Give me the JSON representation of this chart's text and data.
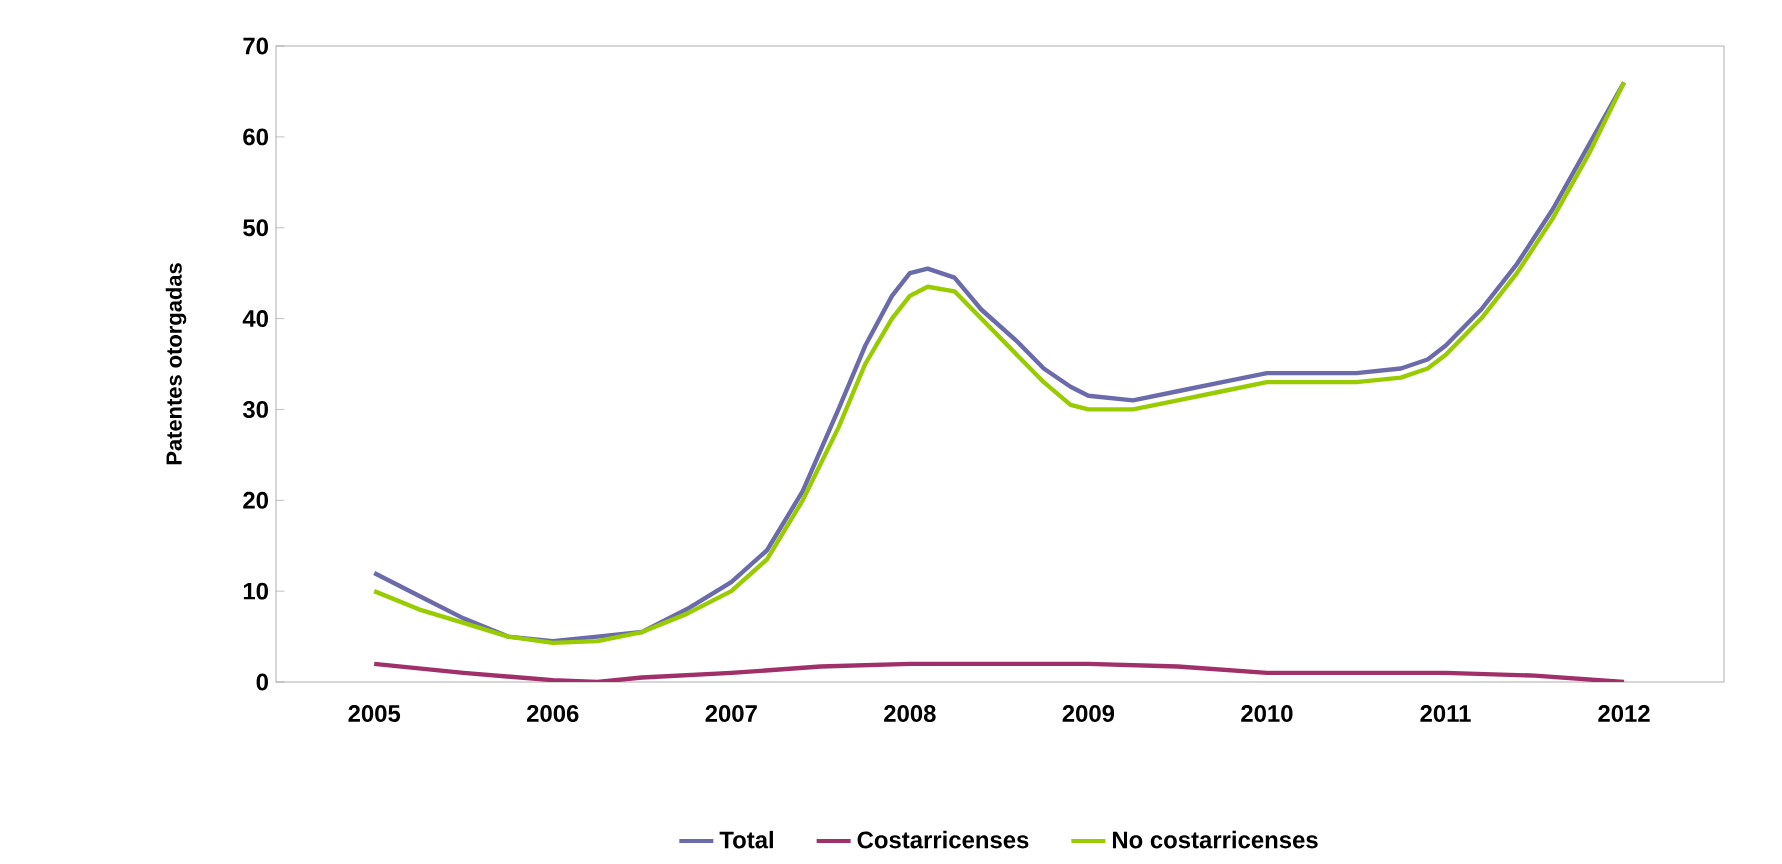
{
  "chart_data": {
    "type": "line",
    "ylabel": "Patentes otorgadas",
    "xlim": [
      2004.45,
      2012.56
    ],
    "ylim": [
      0,
      70
    ],
    "xticks": [
      2005,
      2006,
      2007,
      2008,
      2009,
      2010,
      2011,
      2012
    ],
    "yticks": [
      0,
      10,
      20,
      30,
      40,
      50,
      60,
      70
    ],
    "grid": false,
    "legend": "bottom",
    "marker": "none",
    "line_style": "solid",
    "series": [
      {
        "name": "Total",
        "color": "#6b6bab",
        "x": [
          2005,
          2005.25,
          2005.5,
          2005.75,
          2006,
          2006.25,
          2006.5,
          2006.75,
          2007,
          2007.2,
          2007.4,
          2007.6,
          2007.75,
          2007.9,
          2008,
          2008.1,
          2008.25,
          2008.4,
          2008.6,
          2008.75,
          2008.9,
          2009,
          2009.25,
          2009.5,
          2009.75,
          2010,
          2010.25,
          2010.5,
          2010.75,
          2010.9,
          2011,
          2011.2,
          2011.4,
          2011.6,
          2011.8,
          2012
        ],
        "values": [
          12,
          9.5,
          7,
          5,
          4.5,
          5,
          5.5,
          8,
          11,
          14.5,
          21,
          30,
          37,
          42.5,
          45,
          45.5,
          44.5,
          41,
          37.5,
          34.5,
          32.5,
          31.5,
          31,
          32,
          33,
          34,
          34,
          34,
          34.5,
          35.5,
          37,
          41,
          46,
          52,
          59,
          66
        ]
      },
      {
        "name": "Costarricenses",
        "color": "#a0306a",
        "x": [
          2005,
          2005.5,
          2006,
          2006.25,
          2006.5,
          2007,
          2007.5,
          2008,
          2008.5,
          2009,
          2009.5,
          2010,
          2010.5,
          2011,
          2011.5,
          2012
        ],
        "values": [
          2,
          1,
          0.2,
          0,
          0.5,
          1,
          1.7,
          2,
          2,
          2,
          1.7,
          1,
          1,
          1,
          0.7,
          0
        ]
      },
      {
        "name": "No costarricenses",
        "color": "#99cc00",
        "x": [
          2005,
          2005.25,
          2005.5,
          2005.75,
          2006,
          2006.25,
          2006.5,
          2006.75,
          2007,
          2007.2,
          2007.4,
          2007.6,
          2007.75,
          2007.9,
          2008,
          2008.1,
          2008.25,
          2008.4,
          2008.6,
          2008.75,
          2008.9,
          2009,
          2009.25,
          2009.5,
          2009.75,
          2010,
          2010.25,
          2010.5,
          2010.75,
          2010.9,
          2011,
          2011.2,
          2011.4,
          2011.6,
          2011.8,
          2012
        ],
        "values": [
          10,
          8,
          6.5,
          5,
          4.3,
          4.5,
          5.5,
          7.5,
          10,
          13.5,
          20,
          28,
          35,
          40,
          42.5,
          43.5,
          43,
          40,
          36,
          33,
          30.5,
          30,
          30,
          31,
          32,
          33,
          33,
          33,
          33.5,
          34.5,
          36,
          40,
          45,
          51,
          58,
          66
        ]
      }
    ]
  }
}
